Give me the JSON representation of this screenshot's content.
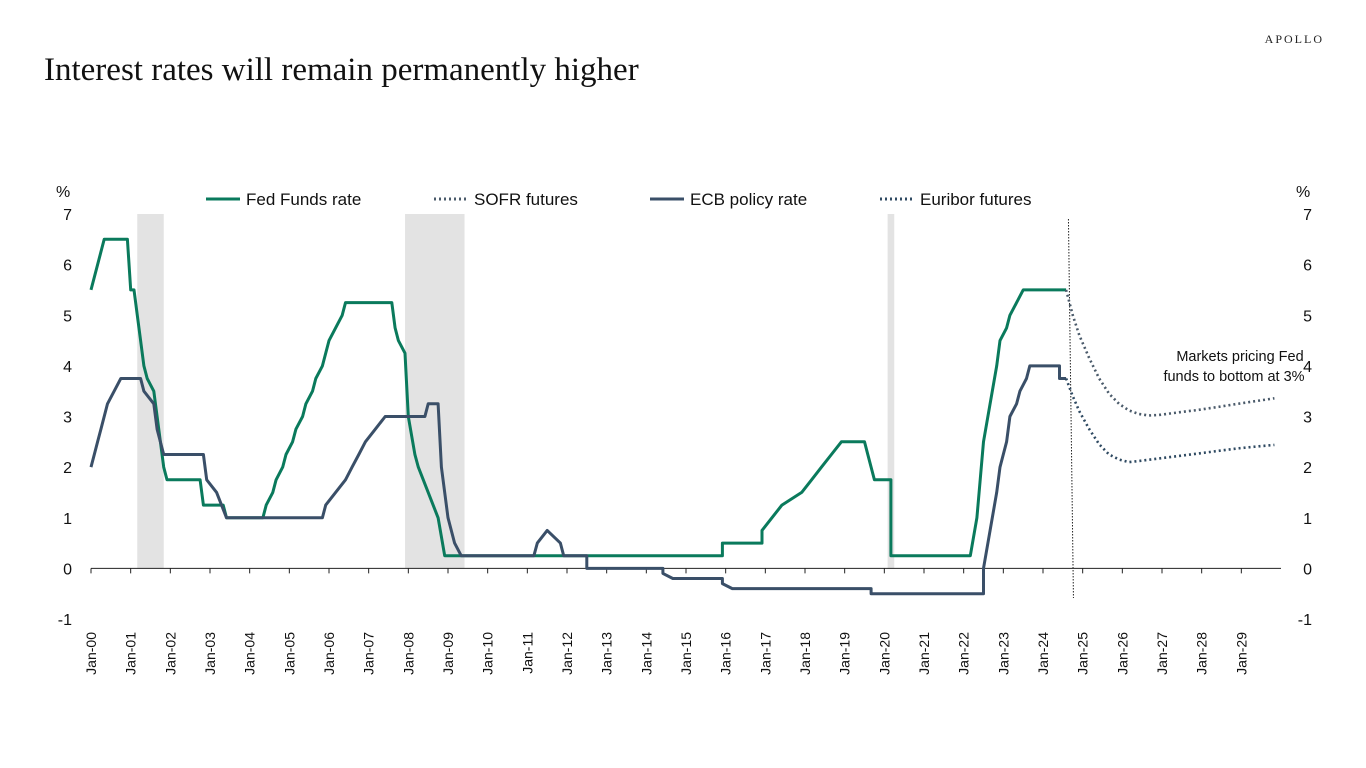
{
  "header": {
    "brand": "APOLLO",
    "title": "Interest rates will remain permanently higher"
  },
  "colors": {
    "fed": "#0a7a5c",
    "ecb": "#3a4f68",
    "sofr": "#4a5a6a",
    "euribor": "#2f4a62",
    "recession": "#e3e3e3"
  },
  "chart_data": {
    "type": "line",
    "title": "Interest rates will remain permanently higher",
    "ylabel_left": "%",
    "ylabel_right": "%",
    "ylim": [
      -1,
      7
    ],
    "yticks": [
      -1,
      0,
      1,
      2,
      3,
      4,
      5,
      6,
      7
    ],
    "xlim": [
      "2000-01",
      "2030-01"
    ],
    "xtick_labels": [
      "Jan-00",
      "Jan-01",
      "Jan-02",
      "Jan-03",
      "Jan-04",
      "Jan-05",
      "Jan-06",
      "Jan-07",
      "Jan-08",
      "Jan-09",
      "Jan-10",
      "Jan-11",
      "Jan-12",
      "Jan-13",
      "Jan-14",
      "Jan-15",
      "Jan-16",
      "Jan-17",
      "Jan-18",
      "Jan-19",
      "Jan-20",
      "Jan-21",
      "Jan-22",
      "Jan-23",
      "Jan-24",
      "Jan-25",
      "Jan-26",
      "Jan-27",
      "Jan-28",
      "Jan-29"
    ],
    "legend_position": "top",
    "grid": false,
    "recessions": [
      [
        "2001-03",
        "2001-11"
      ],
      [
        "2007-12",
        "2009-06"
      ],
      [
        "2020-02",
        "2020-04"
      ]
    ],
    "forecast_start": "2024-09",
    "annotation": [
      "Markets pricing Fed",
      "funds to bottom at 3%"
    ],
    "series": [
      {
        "name": "Fed Funds rate",
        "style": "solid",
        "points": [
          [
            "2000-01",
            5.5
          ],
          [
            "2000-02",
            5.75
          ],
          [
            "2000-03",
            6.0
          ],
          [
            "2000-05",
            6.5
          ],
          [
            "2000-12",
            6.5
          ],
          [
            "2001-01",
            5.5
          ],
          [
            "2001-02",
            5.5
          ],
          [
            "2001-03",
            5.0
          ],
          [
            "2001-04",
            4.5
          ],
          [
            "2001-05",
            4.0
          ],
          [
            "2001-06",
            3.75
          ],
          [
            "2001-08",
            3.5
          ],
          [
            "2001-09",
            3.0
          ],
          [
            "2001-10",
            2.5
          ],
          [
            "2001-11",
            2.0
          ],
          [
            "2001-12",
            1.75
          ],
          [
            "2002-10",
            1.75
          ],
          [
            "2002-11",
            1.25
          ],
          [
            "2003-05",
            1.25
          ],
          [
            "2003-06",
            1.0
          ],
          [
            "2004-05",
            1.0
          ],
          [
            "2004-06",
            1.25
          ],
          [
            "2004-08",
            1.5
          ],
          [
            "2004-09",
            1.75
          ],
          [
            "2004-11",
            2.0
          ],
          [
            "2004-12",
            2.25
          ],
          [
            "2005-02",
            2.5
          ],
          [
            "2005-03",
            2.75
          ],
          [
            "2005-05",
            3.0
          ],
          [
            "2005-06",
            3.25
          ],
          [
            "2005-08",
            3.5
          ],
          [
            "2005-09",
            3.75
          ],
          [
            "2005-11",
            4.0
          ],
          [
            "2005-12",
            4.25
          ],
          [
            "2006-01",
            4.5
          ],
          [
            "2006-03",
            4.75
          ],
          [
            "2006-05",
            5.0
          ],
          [
            "2006-06",
            5.25
          ],
          [
            "2007-08",
            5.25
          ],
          [
            "2007-09",
            4.75
          ],
          [
            "2007-10",
            4.5
          ],
          [
            "2007-12",
            4.25
          ],
          [
            "2008-01",
            3.0
          ],
          [
            "2008-03",
            2.25
          ],
          [
            "2008-04",
            2.0
          ],
          [
            "2008-10",
            1.0
          ],
          [
            "2008-12",
            0.25
          ],
          [
            "2015-12",
            0.25
          ],
          [
            "2015-12",
            0.5
          ],
          [
            "2016-12",
            0.5
          ],
          [
            "2016-12",
            0.75
          ],
          [
            "2017-03",
            1.0
          ],
          [
            "2017-06",
            1.25
          ],
          [
            "2017-12",
            1.5
          ],
          [
            "2018-03",
            1.75
          ],
          [
            "2018-06",
            2.0
          ],
          [
            "2018-09",
            2.25
          ],
          [
            "2018-12",
            2.5
          ],
          [
            "2019-07",
            2.5
          ],
          [
            "2019-08",
            2.25
          ],
          [
            "2019-09",
            2.0
          ],
          [
            "2019-10",
            1.75
          ],
          [
            "2020-03",
            1.75
          ],
          [
            "2020-03",
            0.25
          ],
          [
            "2022-03",
            0.25
          ],
          [
            "2022-05",
            1.0
          ],
          [
            "2022-06",
            1.75
          ],
          [
            "2022-07",
            2.5
          ],
          [
            "2022-09",
            3.25
          ],
          [
            "2022-11",
            4.0
          ],
          [
            "2022-12",
            4.5
          ],
          [
            "2023-02",
            4.75
          ],
          [
            "2023-03",
            5.0
          ],
          [
            "2023-05",
            5.25
          ],
          [
            "2023-07",
            5.5
          ],
          [
            "2024-08",
            5.5
          ]
        ]
      },
      {
        "name": "SOFR futures",
        "style": "dotted",
        "points": [
          [
            "2024-08",
            5.5
          ],
          [
            "2024-10",
            5.0
          ],
          [
            "2024-12",
            4.6
          ],
          [
            "2025-03",
            4.15
          ],
          [
            "2025-06",
            3.75
          ],
          [
            "2025-09",
            3.45
          ],
          [
            "2025-12",
            3.25
          ],
          [
            "2026-03",
            3.12
          ],
          [
            "2026-06",
            3.05
          ],
          [
            "2026-09",
            3.02
          ],
          [
            "2026-12",
            3.03
          ],
          [
            "2027-06",
            3.08
          ],
          [
            "2027-12",
            3.13
          ],
          [
            "2028-06",
            3.19
          ],
          [
            "2028-12",
            3.25
          ],
          [
            "2029-06",
            3.31
          ],
          [
            "2029-11",
            3.36
          ]
        ]
      },
      {
        "name": "ECB policy rate",
        "style": "solid",
        "points": [
          [
            "2000-01",
            2.0
          ],
          [
            "2000-02",
            2.25
          ],
          [
            "2000-03",
            2.5
          ],
          [
            "2000-04",
            2.75
          ],
          [
            "2000-06",
            3.25
          ],
          [
            "2000-10",
            3.75
          ],
          [
            "2001-04",
            3.75
          ],
          [
            "2001-05",
            3.5
          ],
          [
            "2001-08",
            3.25
          ],
          [
            "2001-09",
            2.75
          ],
          [
            "2001-11",
            2.25
          ],
          [
            "2002-11",
            2.25
          ],
          [
            "2002-12",
            1.75
          ],
          [
            "2003-03",
            1.5
          ],
          [
            "2003-06",
            1.0
          ],
          [
            "2005-11",
            1.0
          ],
          [
            "2005-12",
            1.25
          ],
          [
            "2006-03",
            1.5
          ],
          [
            "2006-06",
            1.75
          ],
          [
            "2006-08",
            2.0
          ],
          [
            "2006-10",
            2.25
          ],
          [
            "2006-12",
            2.5
          ],
          [
            "2007-03",
            2.75
          ],
          [
            "2007-06",
            3.0
          ],
          [
            "2008-06",
            3.0
          ],
          [
            "2008-07",
            3.25
          ],
          [
            "2008-10",
            3.25
          ],
          [
            "2008-11",
            2.0
          ],
          [
            "2008-12",
            1.5
          ],
          [
            "2009-01",
            1.0
          ],
          [
            "2009-03",
            0.5
          ],
          [
            "2009-05",
            0.25
          ],
          [
            "2011-03",
            0.25
          ],
          [
            "2011-04",
            0.5
          ],
          [
            "2011-07",
            0.75
          ],
          [
            "2011-11",
            0.5
          ],
          [
            "2011-12",
            0.25
          ],
          [
            "2012-07",
            0.25
          ],
          [
            "2012-07",
            0.0
          ],
          [
            "2014-06",
            0.0
          ],
          [
            "2014-06",
            -0.1
          ],
          [
            "2014-09",
            -0.2
          ],
          [
            "2015-12",
            -0.2
          ],
          [
            "2015-12",
            -0.3
          ],
          [
            "2016-03",
            -0.4
          ],
          [
            "2019-09",
            -0.4
          ],
          [
            "2019-09",
            -0.5
          ],
          [
            "2022-07",
            -0.5
          ],
          [
            "2022-07",
            0.0
          ],
          [
            "2022-09",
            0.75
          ],
          [
            "2022-11",
            1.5
          ],
          [
            "2022-12",
            2.0
          ],
          [
            "2023-02",
            2.5
          ],
          [
            "2023-03",
            3.0
          ],
          [
            "2023-05",
            3.25
          ],
          [
            "2023-06",
            3.5
          ],
          [
            "2023-08",
            3.75
          ],
          [
            "2023-09",
            4.0
          ],
          [
            "2024-06",
            4.0
          ],
          [
            "2024-06",
            3.75
          ],
          [
            "2024-08",
            3.75
          ]
        ]
      },
      {
        "name": "Euribor futures",
        "style": "dotted",
        "points": [
          [
            "2024-08",
            3.75
          ],
          [
            "2024-10",
            3.4
          ],
          [
            "2024-12",
            3.1
          ],
          [
            "2025-03",
            2.75
          ],
          [
            "2025-06",
            2.45
          ],
          [
            "2025-09",
            2.25
          ],
          [
            "2025-12",
            2.15
          ],
          [
            "2026-03",
            2.1
          ],
          [
            "2026-06",
            2.12
          ],
          [
            "2026-12",
            2.17
          ],
          [
            "2027-06",
            2.22
          ],
          [
            "2027-12",
            2.27
          ],
          [
            "2028-06",
            2.32
          ],
          [
            "2028-12",
            2.37
          ],
          [
            "2029-06",
            2.41
          ],
          [
            "2029-11",
            2.44
          ]
        ]
      }
    ]
  }
}
